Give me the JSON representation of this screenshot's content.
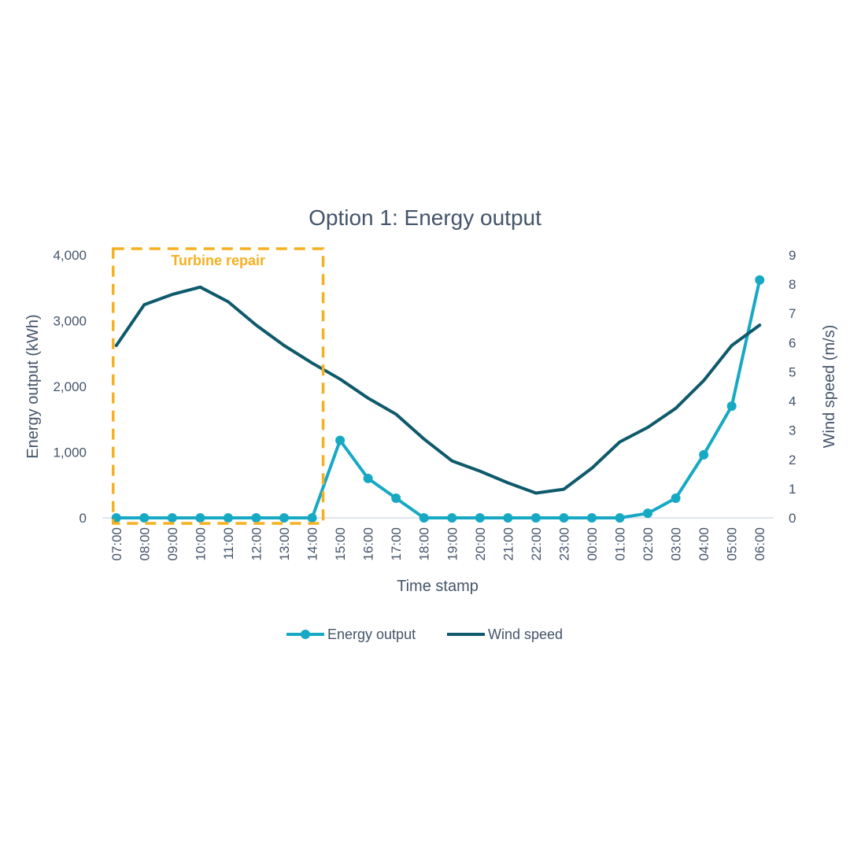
{
  "chart_data": {
    "type": "line",
    "title": "Option 1: Energy output",
    "xlabel": "Time stamp",
    "ylabel": "Energy output (kWh)",
    "y2label": "Wind speed (m/s)",
    "ylim": [
      0,
      4000
    ],
    "y2lim": [
      0,
      9
    ],
    "y_ticks": [
      "0",
      "1,000",
      "2,000",
      "3,000",
      "4,000"
    ],
    "y_tick_values": [
      0,
      1000,
      2000,
      3000,
      4000
    ],
    "y2_ticks": [
      "0",
      "1",
      "2",
      "3",
      "4",
      "5",
      "6",
      "7",
      "8",
      "9"
    ],
    "y2_tick_values": [
      0,
      1,
      2,
      3,
      4,
      5,
      6,
      7,
      8,
      9
    ],
    "categories": [
      "07:00",
      "08:00",
      "09:00",
      "10:00",
      "11:00",
      "12:00",
      "13:00",
      "14:00",
      "15:00",
      "16:00",
      "17:00",
      "18:00",
      "19:00",
      "20:00",
      "21:00",
      "22:00",
      "23:00",
      "00:00",
      "01:00",
      "02:00",
      "03:00",
      "04:00",
      "05:00",
      "06:00"
    ],
    "series": [
      {
        "name": "Energy output",
        "axis": "left",
        "color": "#17a9c4",
        "markers": true,
        "values": [
          0,
          0,
          0,
          0,
          0,
          0,
          0,
          0,
          1180,
          600,
          300,
          0,
          0,
          0,
          0,
          0,
          0,
          0,
          0,
          70,
          300,
          960,
          1700,
          3620
        ]
      },
      {
        "name": "Wind speed",
        "axis": "right",
        "color": "#0e5a6b",
        "markers": false,
        "values": [
          5.9,
          7.3,
          7.65,
          7.9,
          7.4,
          6.6,
          5.9,
          5.3,
          4.75,
          4.1,
          3.55,
          2.7,
          1.95,
          1.6,
          1.2,
          0.85,
          0.98,
          1.7,
          2.6,
          3.1,
          3.75,
          4.7,
          5.9,
          6.6
        ]
      }
    ],
    "annotation": {
      "label": "Turbine repair",
      "color": "#f5b020",
      "from": "07:00",
      "to": "14:00"
    },
    "legend": "bottom"
  }
}
